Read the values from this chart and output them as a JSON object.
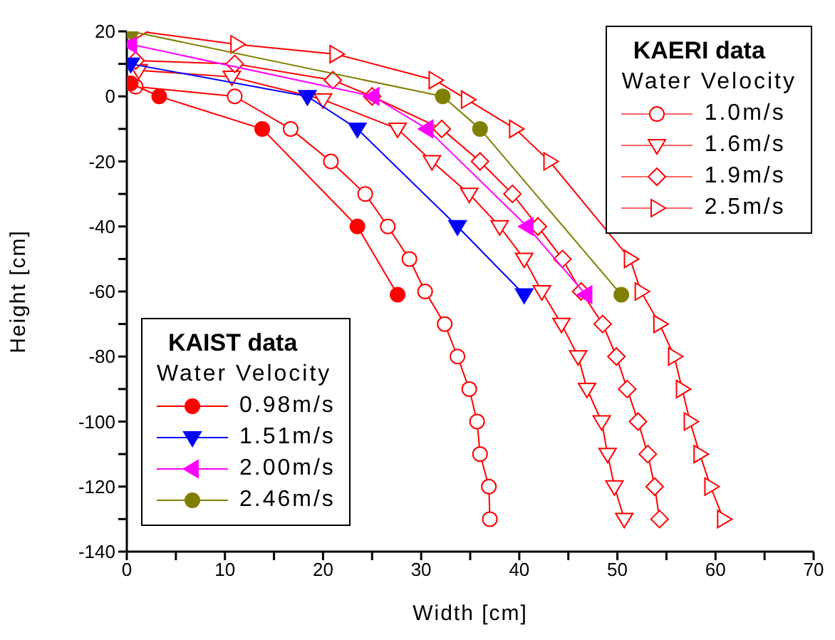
{
  "chart_data": {
    "type": "line",
    "xlabel": "Width [cm]",
    "ylabel": "Height [cm]",
    "annotations": [
      "KAERI data",
      "Water Velocity",
      "KAIST data",
      "Water Velocity"
    ],
    "xlim": [
      0,
      70
    ],
    "xticks": [
      0,
      {
        "value": 5,
        "label": null
      },
      10,
      {
        "value": 15,
        "label": null
      },
      20,
      {
        "value": 25,
        "label": null
      },
      30,
      {
        "value": 35,
        "label": null
      },
      40,
      {
        "value": 45,
        "label": null
      },
      50,
      {
        "value": 55,
        "label": null
      },
      60,
      {
        "value": 65,
        "label": null
      },
      70
    ],
    "ylim": [
      -140,
      20
    ],
    "yticks": [
      -140,
      {
        "value": -130,
        "label": null
      },
      -120,
      {
        "value": -110,
        "label": null
      },
      -100,
      {
        "value": -90,
        "label": null
      },
      -80,
      {
        "value": -70,
        "label": null
      },
      -60,
      {
        "value": -50,
        "label": null
      },
      -40,
      {
        "value": -30,
        "label": null
      },
      -20,
      {
        "value": -10,
        "label": null
      },
      0,
      {
        "value": 10,
        "label": null
      },
      20
    ],
    "grid": false,
    "legend": "bottom left",
    "series": [
      {
        "name": "1.0m/s",
        "color": "#ff0000",
        "marker": "circle",
        "x": [
          0.9,
          11,
          16.7,
          20.8,
          24.3,
          26.6,
          28.8,
          30.4,
          32.4,
          33.7,
          34.9,
          35.7,
          36,
          36.9,
          37
        ],
        "values": [
          3,
          0,
          -10,
          -20,
          -30,
          -40,
          -50,
          -60,
          -70,
          -80,
          -90,
          -100,
          -110,
          -120,
          -130
        ]
      },
      {
        "name": "1.6m/s",
        "color": "#ff0000",
        "marker": "triangle-down",
        "x": [
          1.2,
          10.7,
          20,
          27.6,
          31.1,
          34.9,
          38,
          40.5,
          42.3,
          44.3,
          46,
          46.9,
          48.4,
          49,
          49.7,
          50.7
        ],
        "values": [
          8,
          6,
          -1,
          -10,
          -20,
          -30,
          -40,
          -50,
          -60,
          -70,
          -80,
          -90,
          -100,
          -110,
          -120,
          -130
        ]
      },
      {
        "name": "1.9m/s",
        "color": "#ff0000",
        "marker": "diamond",
        "x": [
          0.9,
          11,
          21,
          25,
          32.1,
          36,
          39.3,
          41.9,
          44.4,
          46.3,
          48.5,
          49.9,
          51,
          52.1,
          53.1,
          53.8,
          54.3
        ],
        "values": [
          11,
          10,
          5,
          0,
          -10,
          -20,
          -30,
          -40,
          -50,
          -60,
          -70,
          -80,
          -90,
          -100,
          -110,
          -120,
          -130
        ]
      },
      {
        "name": "2.5m/s",
        "color": "#ff0000",
        "marker": "triangle-right",
        "x": [
          1.3,
          11.2,
          21.3,
          31.4,
          34.7,
          39.6,
          43.1,
          46,
          48.5,
          51.3,
          52.4,
          54.3,
          55.8,
          56.6,
          57.4,
          58.4,
          59.5,
          60.8
        ],
        "values": [
          20,
          16,
          13,
          5,
          -1,
          -10,
          -20,
          null,
          null,
          -50,
          -60,
          -70,
          -80,
          -90,
          -100,
          -110,
          -120,
          -130
        ]
      },
      {
        "name": "0.98m/s",
        "color": "#ff0000",
        "marker": "circle",
        "x": [
          0.4,
          3.3,
          13.8,
          23.5,
          27.6
        ],
        "values": [
          4,
          0,
          -10,
          -40,
          -61
        ]
      },
      {
        "name": "1.51m/s",
        "color": "#0000ff",
        "marker": "triangle-down",
        "x": [
          0.4,
          18.4,
          23.5,
          33.7,
          40.5
        ],
        "values": [
          10,
          0,
          -10,
          -40,
          -61
        ]
      },
      {
        "name": "2.00m/s",
        "color": "#ff00ff",
        "marker": "triangle-left",
        "x": [
          0.4,
          25.1,
          30.6,
          40.8,
          46.8
        ],
        "values": [
          16,
          0,
          -10,
          -40,
          -61
        ]
      },
      {
        "name": "2.46m/s",
        "color": "#808000",
        "marker": "circle",
        "x": [
          0.4,
          32.2,
          36,
          50.4
        ],
        "values": [
          20,
          0,
          -10,
          -61
        ]
      }
    ]
  }
}
